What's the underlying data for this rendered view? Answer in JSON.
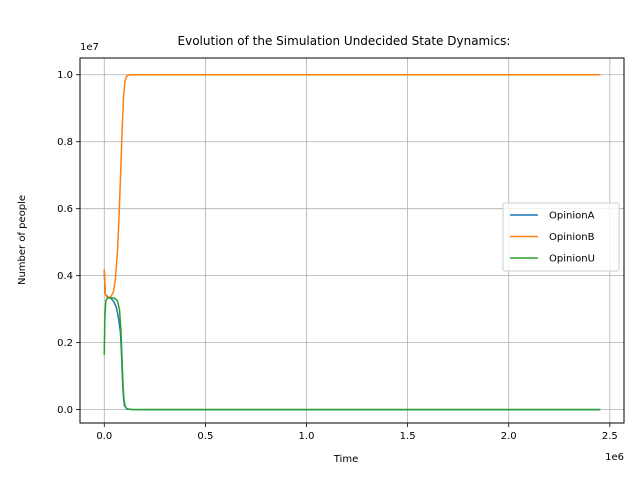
{
  "chart_data": {
    "type": "line",
    "title": "Evolution of the Simulation Undecided State Dynamics:",
    "xlabel": "Time",
    "ylabel": "Number of people",
    "x_offset_label": "1e6",
    "y_offset_label": "1e7",
    "xlim": [
      -120000,
      2570000
    ],
    "ylim": [
      -400000,
      10500000
    ],
    "x_ticks": [
      0,
      500000,
      1000000,
      1500000,
      2000000,
      2500000
    ],
    "x_tick_labels": [
      "0.0",
      "0.5",
      "1.0",
      "1.5",
      "2.0",
      "2.5"
    ],
    "y_ticks": [
      0,
      2000000,
      4000000,
      6000000,
      8000000,
      10000000
    ],
    "y_tick_labels": [
      "0.0",
      "0.2",
      "0.4",
      "0.6",
      "0.8",
      "1.0"
    ],
    "grid": true,
    "legend_position": "center-right",
    "series": [
      {
        "name": "OpinionA",
        "color": "#1f77b4",
        "x": [
          0,
          5000,
          15000,
          30000,
          45000,
          60000,
          70000,
          80000,
          85000,
          90000,
          95000,
          100000,
          110000,
          130000,
          200000,
          2450000
        ],
        "y": [
          4150000,
          3450000,
          3380000,
          3330000,
          3250000,
          3050000,
          2750000,
          2300000,
          1700000,
          900000,
          350000,
          120000,
          30000,
          5000,
          0,
          0
        ]
      },
      {
        "name": "OpinionB",
        "color": "#ff7f0e",
        "x": [
          0,
          5000,
          15000,
          30000,
          45000,
          55000,
          65000,
          72000,
          80000,
          88000,
          95000,
          102000,
          110000,
          120000,
          135000,
          160000,
          2450000
        ],
        "y": [
          4150000,
          3450000,
          3350000,
          3350000,
          3500000,
          3900000,
          4700000,
          5600000,
          6900000,
          8300000,
          9300000,
          9800000,
          9950000,
          9990000,
          10000000,
          10000000,
          10000000
        ]
      },
      {
        "name": "OpinionU",
        "color": "#2ca02c",
        "x": [
          0,
          3000,
          8000,
          15000,
          30000,
          50000,
          65000,
          75000,
          82000,
          88000,
          93000,
          98000,
          105000,
          115000,
          140000,
          200000,
          2450000
        ],
        "y": [
          1650000,
          2800000,
          3250000,
          3330000,
          3340000,
          3330000,
          3250000,
          3000000,
          2400000,
          1500000,
          700000,
          250000,
          70000,
          15000,
          2000,
          0,
          0
        ]
      }
    ]
  }
}
